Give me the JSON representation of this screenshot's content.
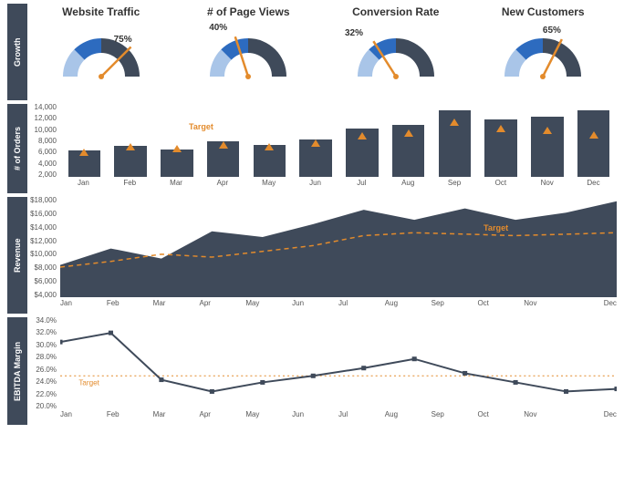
{
  "colors": {
    "panel_label_bg": "#3f4a5a",
    "panel_label_fg": "#ffffff",
    "gauge_segment1": "#a9c5e8",
    "gauge_segment2": "#2d6bbf",
    "gauge_segment3": "#3f4a5a",
    "needle": "#e38b2c",
    "bar_fill": "#3f4a5a",
    "target_marker": "#e38b2c",
    "area_fill": "#3f4a5a",
    "target_line": "#e38b2c",
    "line_stroke": "#3f4a5a",
    "axis_text": "#555555",
    "dotted_target": "#e38b2c",
    "background": "#ffffff"
  },
  "growth": {
    "label": "Growth",
    "gauges": [
      {
        "title": "Website Traffic",
        "value": 75,
        "display": "75%"
      },
      {
        "title": "# of Page Views",
        "value": 40,
        "display": "40%"
      },
      {
        "title": "Conversion Rate",
        "value": 32,
        "display": "32%"
      },
      {
        "title": "New Customers",
        "value": 65,
        "display": "65%"
      }
    ],
    "gauge_segments": [
      0,
      25,
      50,
      100
    ]
  },
  "orders": {
    "label": "# of Orders",
    "months": [
      "Jan",
      "Feb",
      "Mar",
      "Apr",
      "May",
      "Jun",
      "Jul",
      "Aug",
      "Sep",
      "Oct",
      "Nov",
      "Dec"
    ],
    "values": [
      5000,
      6000,
      5200,
      6800,
      6200,
      7200,
      9200,
      10000,
      12800,
      11000,
      11500,
      12800
    ],
    "targets": [
      4800,
      5800,
      5500,
      6200,
      5800,
      6400,
      7800,
      8400,
      10500,
      9200,
      9000,
      8000
    ],
    "target_label": "Target",
    "y_ticks": [
      14000,
      12000,
      10000,
      8000,
      6000,
      4000,
      2000
    ],
    "ylim": [
      0,
      14000
    ]
  },
  "revenue": {
    "label": "Revenue",
    "months": [
      "Jan",
      "Feb",
      "Mar",
      "Apr",
      "May",
      "Jun",
      "Jul",
      "Aug",
      "Sep",
      "Oct",
      "Nov",
      "Dec"
    ],
    "values": [
      8500,
      10800,
      9400,
      13200,
      12400,
      14200,
      16200,
      14800,
      16400,
      14800,
      15800,
      17400
    ],
    "targets": [
      8200,
      9000,
      10000,
      9600,
      10400,
      11200,
      12600,
      13000,
      12800,
      12600,
      12800,
      13000
    ],
    "target_label": "Target",
    "y_ticks": [
      18000,
      16000,
      14000,
      12000,
      10000,
      8000,
      6000,
      4000
    ],
    "y_tick_labels": [
      "$18,000",
      "$16,000",
      "$14,000",
      "$12,000",
      "$10,000",
      "$8,000",
      "$6,000",
      "$4,000"
    ],
    "ylim": [
      4000,
      18000
    ]
  },
  "ebitda": {
    "label": "EBITDA Margin",
    "months": [
      "Jan",
      "Feb",
      "Mar",
      "Apr",
      "May",
      "Jun",
      "Jul",
      "Aug",
      "Sep",
      "Oct",
      "Nov",
      "Dec"
    ],
    "values": [
      30.2,
      31.6,
      24.4,
      22.6,
      24.0,
      25.0,
      26.2,
      27.6,
      25.4,
      24.0,
      22.6,
      23.0
    ],
    "target": 25.0,
    "target_label": "Target",
    "y_ticks": [
      34.0,
      32.0,
      30.0,
      28.0,
      26.0,
      24.0,
      22.0,
      20.0
    ],
    "y_tick_labels": [
      "34.0%",
      "32.0%",
      "30.0%",
      "28.0%",
      "26.0%",
      "24.0%",
      "22.0%",
      "20.0%"
    ],
    "ylim": [
      20.0,
      34.0
    ]
  }
}
